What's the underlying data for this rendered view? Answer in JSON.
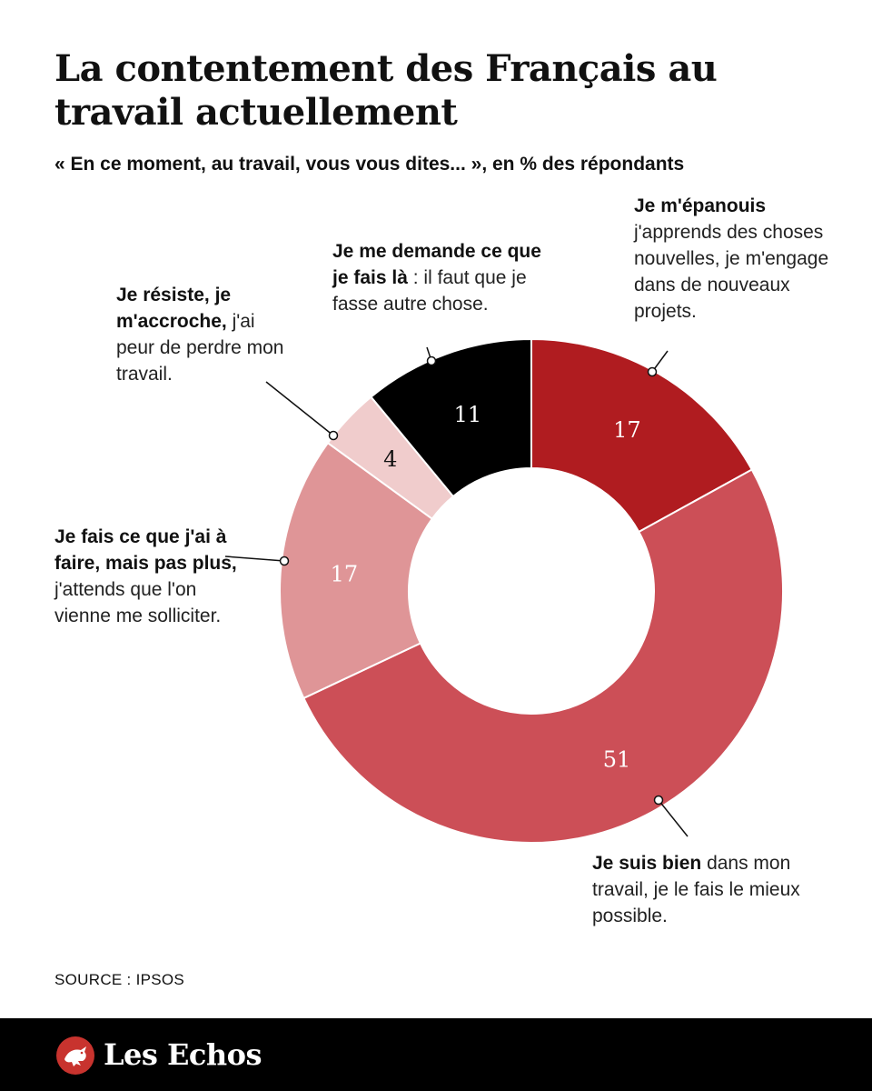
{
  "title": "La contentement des Français au travail actuellement",
  "subtitle": "« En ce moment, au travail, vous vous dites... », en % des répondants",
  "source": "SOURCE : IPSOS",
  "brand": {
    "name": "Les Echos",
    "icon": "les-echos-rooster-icon",
    "bar_color": "#000000",
    "icon_color": "#c8332e"
  },
  "chart_data": {
    "type": "pie",
    "donut": true,
    "start": "12 o'clock, clockwise",
    "slices": [
      {
        "value": 17,
        "label_bold": "Je m'épanouis",
        "label_rest": "j'apprends des choses nouvelles, je m'engage dans de nouveaux projets.",
        "color": "#b01c20",
        "value_text_color": "#ffffff"
      },
      {
        "value": 51,
        "label_bold": "Je suis bien",
        "label_rest": "dans mon travail, je le fais le mieux possible.",
        "color": "#cc4f57",
        "value_text_color": "#ffffff"
      },
      {
        "value": 17,
        "label_bold": "Je fais ce que j'ai à faire, mais pas plus,",
        "label_rest": "j'attends que l'on vienne me solliciter.",
        "color": "#df9597",
        "value_text_color": "#ffffff"
      },
      {
        "value": 4,
        "label_bold": "Je résiste, je m'accroche,",
        "label_rest": "j'ai peur de perdre mon travail.",
        "color": "#f0cccc",
        "value_text_color": "#111111"
      },
      {
        "value": 11,
        "label_bold": "Je me demande ce que je fais là",
        "label_rest": ": il faut que je fasse autre chose.",
        "color": "#000000",
        "value_text_color": "#ffffff"
      }
    ]
  }
}
